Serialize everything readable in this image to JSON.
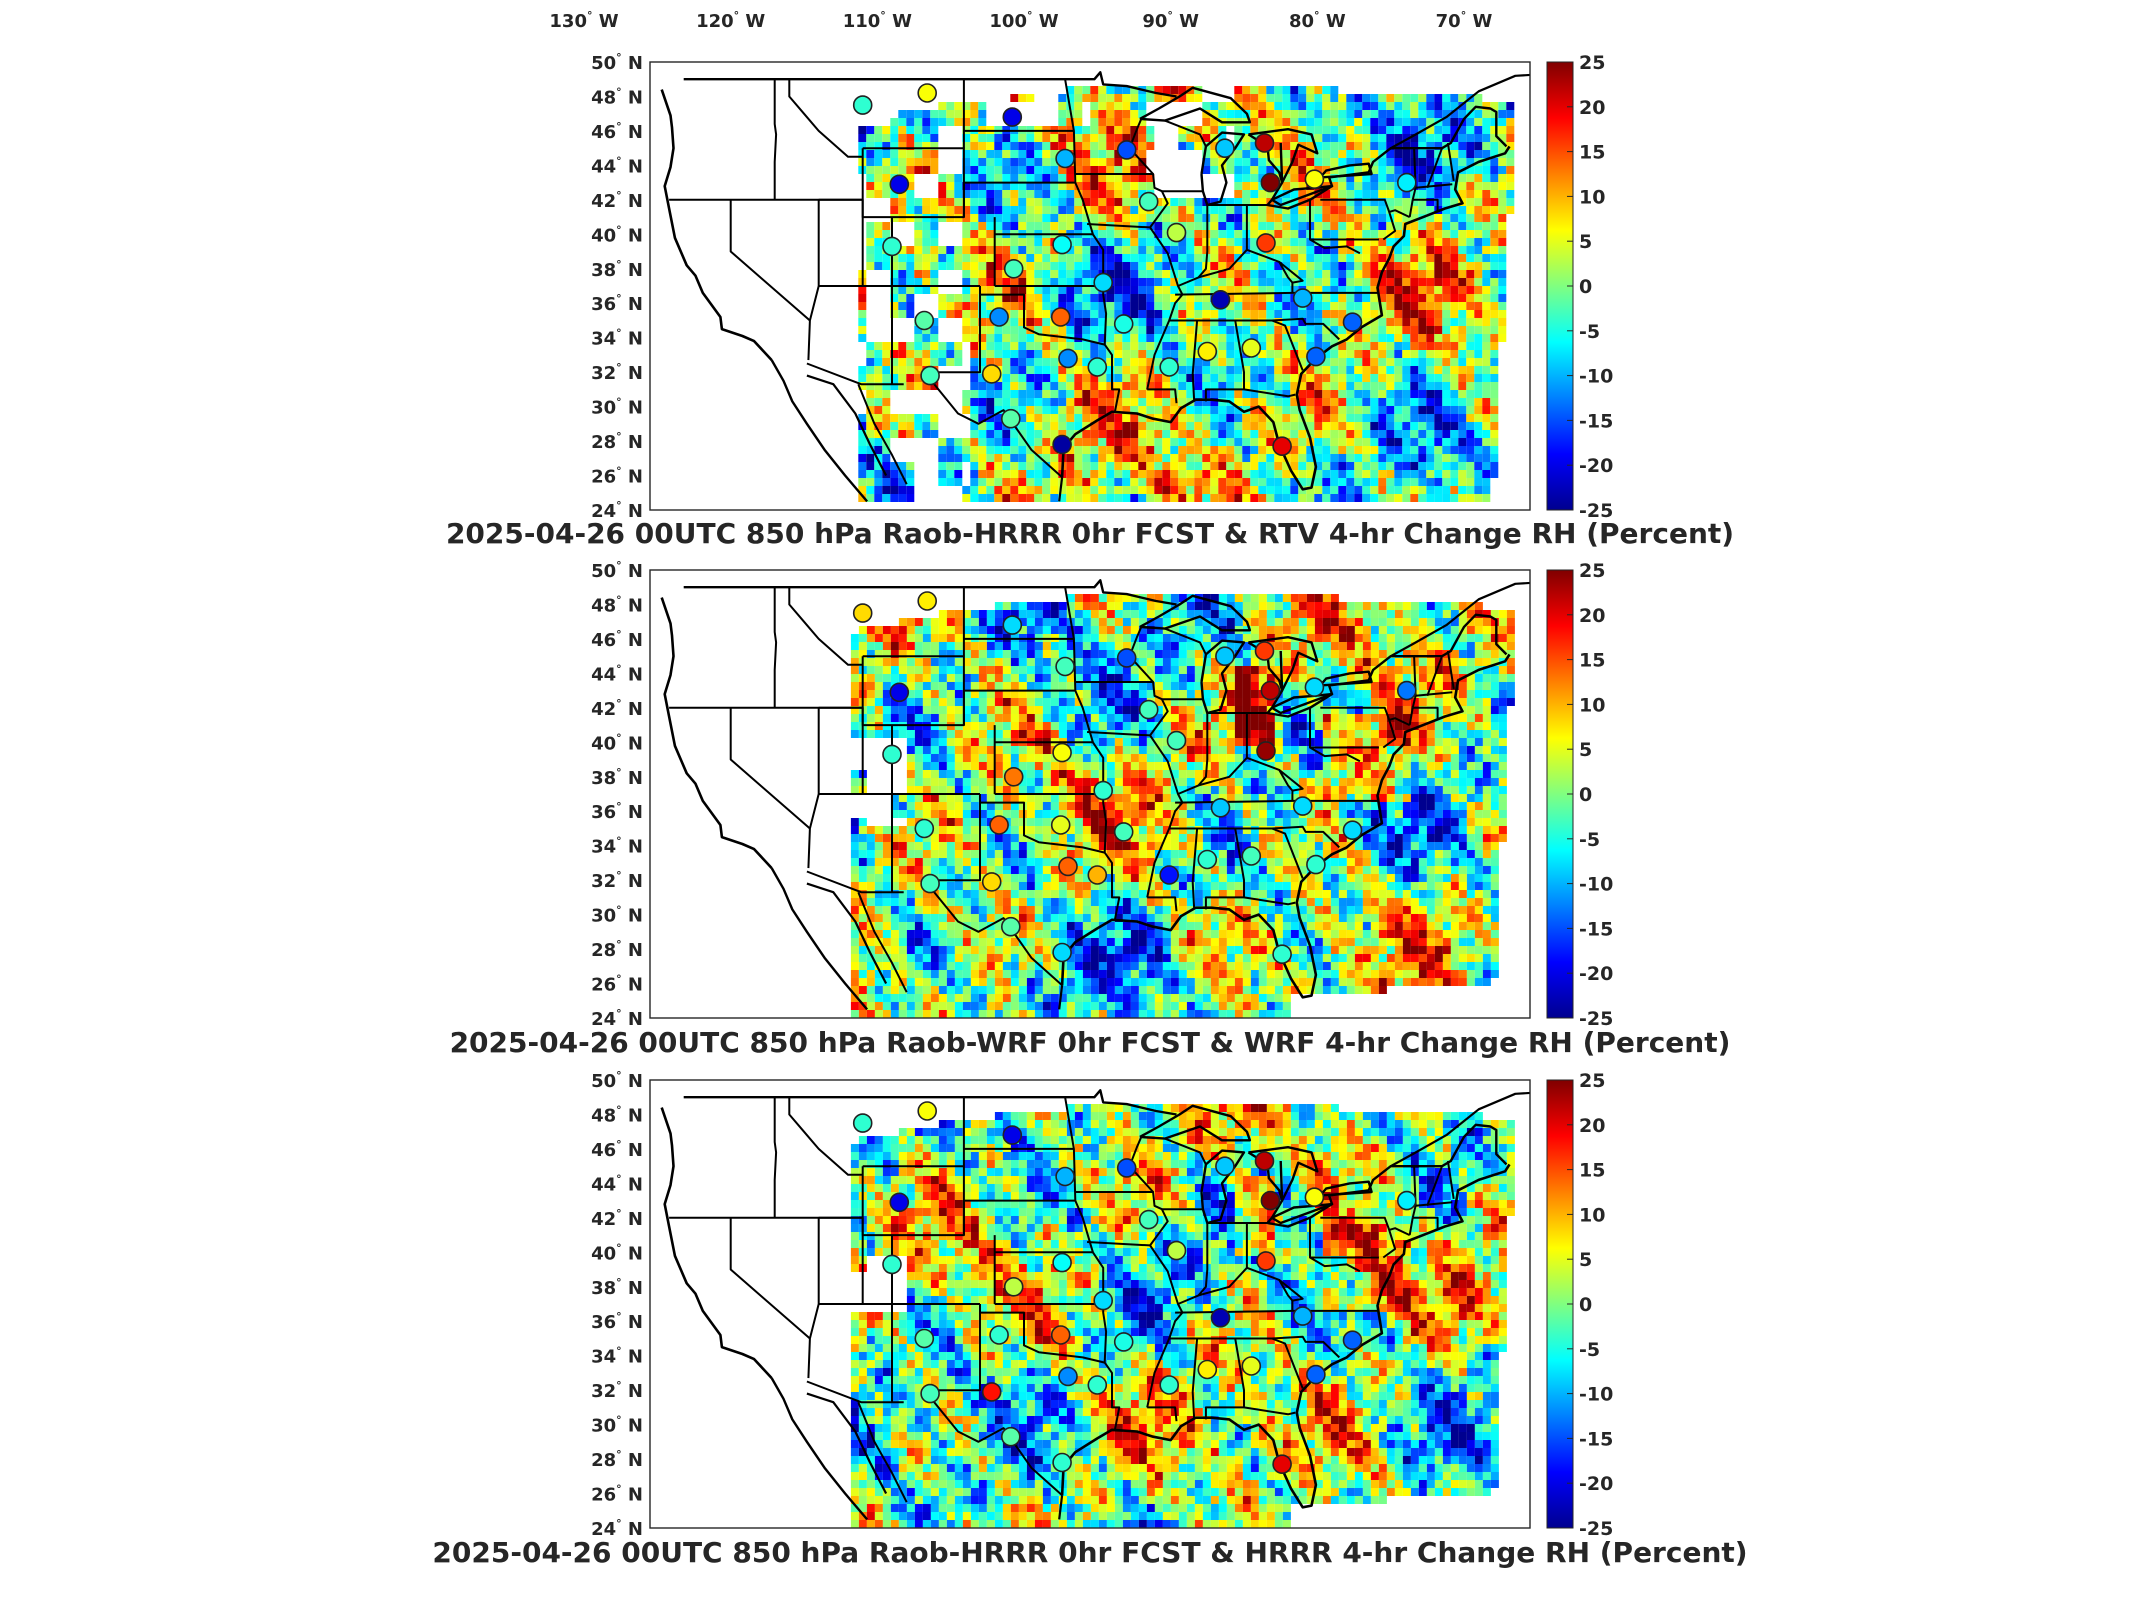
{
  "figure": {
    "top_lon_labels": [
      {
        "num": "130",
        "hemi": "W"
      },
      {
        "num": "120",
        "hemi": "W"
      },
      {
        "num": "110",
        "hemi": "W"
      },
      {
        "num": "100",
        "hemi": "W"
      },
      {
        "num": "90",
        "hemi": "W"
      },
      {
        "num": "80",
        "hemi": "W"
      },
      {
        "num": "70",
        "hemi": "W"
      }
    ],
    "lon_values": [
      -130,
      -120,
      -110,
      -100,
      -90,
      -80,
      -70
    ],
    "lat_labels": [
      {
        "num": "50",
        "hemi": "N"
      },
      {
        "num": "48",
        "hemi": "N"
      },
      {
        "num": "46",
        "hemi": "N"
      },
      {
        "num": "44",
        "hemi": "N"
      },
      {
        "num": "42",
        "hemi": "N"
      },
      {
        "num": "40",
        "hemi": "N"
      },
      {
        "num": "38",
        "hemi": "N"
      },
      {
        "num": "36",
        "hemi": "N"
      },
      {
        "num": "34",
        "hemi": "N"
      },
      {
        "num": "32",
        "hemi": "N"
      },
      {
        "num": "30",
        "hemi": "N"
      },
      {
        "num": "28",
        "hemi": "N"
      },
      {
        "num": "26",
        "hemi": "N"
      },
      {
        "num": "24",
        "hemi": "N"
      }
    ],
    "lat_values": [
      50,
      48,
      46,
      44,
      42,
      40,
      38,
      36,
      34,
      32,
      30,
      28,
      26,
      24
    ],
    "colorbar_ticks": [
      "25",
      "20",
      "15",
      "10",
      "5",
      "0",
      "-5",
      "-10",
      "-15",
      "-20",
      "-25"
    ],
    "colorbar_values": [
      25,
      20,
      15,
      10,
      5,
      0,
      -5,
      -10,
      -15,
      -20,
      -25
    ],
    "colormap": "jet",
    "colormap_stops": [
      "#00008f",
      "#0000ff",
      "#0080ff",
      "#00ffff",
      "#80ff80",
      "#ffff00",
      "#ff8000",
      "#ff0000",
      "#800000"
    ],
    "panels": [
      {
        "title": "2025-04-26 00UTC 850 hPa Raob-HRRR 0hr FCST & RTV 4-hr Change RH (Percent)",
        "field_seed": 11,
        "raobs": [
          {
            "lon": -111.0,
            "lat": 47.5,
            "v": -4
          },
          {
            "lon": -106.6,
            "lat": 48.2,
            "v": 6
          },
          {
            "lon": -100.8,
            "lat": 46.8,
            "v": -20
          },
          {
            "lon": -97.2,
            "lat": 44.4,
            "v": -10
          },
          {
            "lon": -93.0,
            "lat": 44.9,
            "v": -15
          },
          {
            "lon": -108.5,
            "lat": 42.9,
            "v": -20
          },
          {
            "lon": -109.0,
            "lat": 39.3,
            "v": -4
          },
          {
            "lon": -100.7,
            "lat": 38.0,
            "v": -3
          },
          {
            "lon": -97.4,
            "lat": 39.4,
            "v": -6
          },
          {
            "lon": -94.6,
            "lat": 37.2,
            "v": -8
          },
          {
            "lon": -91.5,
            "lat": 41.9,
            "v": -3
          },
          {
            "lon": -89.6,
            "lat": 40.1,
            "v": 3
          },
          {
            "lon": -86.3,
            "lat": 45.0,
            "v": -9
          },
          {
            "lon": -83.6,
            "lat": 45.3,
            "v": 22
          },
          {
            "lon": -83.2,
            "lat": 43.0,
            "v": 25
          },
          {
            "lon": -80.2,
            "lat": 43.2,
            "v": 6
          },
          {
            "lon": -83.5,
            "lat": 39.5,
            "v": 16
          },
          {
            "lon": -73.9,
            "lat": 43.0,
            "v": -7
          },
          {
            "lon": -106.8,
            "lat": 35.0,
            "v": -2
          },
          {
            "lon": -101.7,
            "lat": 35.2,
            "v": -12
          },
          {
            "lon": -97.5,
            "lat": 35.2,
            "v": 14
          },
          {
            "lon": -93.2,
            "lat": 34.8,
            "v": -5
          },
          {
            "lon": -86.6,
            "lat": 36.2,
            "v": -23
          },
          {
            "lon": -81.0,
            "lat": 36.3,
            "v": -10
          },
          {
            "lon": -84.5,
            "lat": 33.4,
            "v": 5
          },
          {
            "lon": -87.5,
            "lat": 33.2,
            "v": 7
          },
          {
            "lon": -90.1,
            "lat": 32.3,
            "v": -4
          },
          {
            "lon": -95.0,
            "lat": 32.3,
            "v": -4
          },
          {
            "lon": -97.0,
            "lat": 32.8,
            "v": -12
          },
          {
            "lon": -102.2,
            "lat": 31.9,
            "v": 8
          },
          {
            "lon": -106.4,
            "lat": 31.8,
            "v": -3
          },
          {
            "lon": -100.9,
            "lat": 29.3,
            "v": -2
          },
          {
            "lon": -97.4,
            "lat": 27.8,
            "v": -24
          },
          {
            "lon": -82.4,
            "lat": 27.7,
            "v": 20
          },
          {
            "lon": -80.1,
            "lat": 32.9,
            "v": -14
          },
          {
            "lon": -77.6,
            "lat": 34.9,
            "v": -14
          }
        ]
      },
      {
        "title": "2025-04-26 00UTC 850 hPa Raob-WRF 0hr FCST & WRF 4-hr Change RH (Percent)",
        "field_seed": 23,
        "raobs": [
          {
            "lon": -111.0,
            "lat": 47.5,
            "v": 8
          },
          {
            "lon": -106.6,
            "lat": 48.2,
            "v": 7
          },
          {
            "lon": -100.8,
            "lat": 46.8,
            "v": -8
          },
          {
            "lon": -97.2,
            "lat": 44.4,
            "v": -3
          },
          {
            "lon": -93.0,
            "lat": 44.9,
            "v": -15
          },
          {
            "lon": -108.5,
            "lat": 42.9,
            "v": -20
          },
          {
            "lon": -109.0,
            "lat": 39.3,
            "v": -4
          },
          {
            "lon": -100.7,
            "lat": 38.0,
            "v": 13
          },
          {
            "lon": -97.4,
            "lat": 39.4,
            "v": 6
          },
          {
            "lon": -94.6,
            "lat": 37.2,
            "v": -4
          },
          {
            "lon": -91.5,
            "lat": 41.9,
            "v": -3
          },
          {
            "lon": -89.6,
            "lat": 40.1,
            "v": -3
          },
          {
            "lon": -86.3,
            "lat": 45.0,
            "v": -9
          },
          {
            "lon": -83.6,
            "lat": 45.3,
            "v": 16
          },
          {
            "lon": -83.2,
            "lat": 43.0,
            "v": 22
          },
          {
            "lon": -80.2,
            "lat": 43.2,
            "v": -8
          },
          {
            "lon": -83.5,
            "lat": 39.5,
            "v": 24
          },
          {
            "lon": -73.9,
            "lat": 43.0,
            "v": -13
          },
          {
            "lon": -106.8,
            "lat": 35.0,
            "v": -4
          },
          {
            "lon": -101.7,
            "lat": 35.2,
            "v": 14
          },
          {
            "lon": -97.5,
            "lat": 35.2,
            "v": 5
          },
          {
            "lon": -93.2,
            "lat": 34.8,
            "v": -3
          },
          {
            "lon": -86.6,
            "lat": 36.2,
            "v": -9
          },
          {
            "lon": -81.0,
            "lat": 36.3,
            "v": -8
          },
          {
            "lon": -84.5,
            "lat": 33.4,
            "v": -3
          },
          {
            "lon": -87.5,
            "lat": 33.2,
            "v": -4
          },
          {
            "lon": -90.1,
            "lat": 32.3,
            "v": -18
          },
          {
            "lon": -95.0,
            "lat": 32.3,
            "v": 10
          },
          {
            "lon": -97.0,
            "lat": 32.8,
            "v": 14
          },
          {
            "lon": -102.2,
            "lat": 31.9,
            "v": 8
          },
          {
            "lon": -106.4,
            "lat": 31.8,
            "v": -3
          },
          {
            "lon": -100.9,
            "lat": 29.3,
            "v": -2
          },
          {
            "lon": -97.4,
            "lat": 27.8,
            "v": -8
          },
          {
            "lon": -82.4,
            "lat": 27.7,
            "v": -4
          },
          {
            "lon": -80.1,
            "lat": 32.9,
            "v": -4
          },
          {
            "lon": -77.6,
            "lat": 34.9,
            "v": -8
          }
        ]
      },
      {
        "title": "2025-04-26 00UTC 850 hPa Raob-HRRR 0hr FCST & HRRR 4-hr Change RH (Percent)",
        "field_seed": 37,
        "raobs": [
          {
            "lon": -111.0,
            "lat": 47.5,
            "v": -4
          },
          {
            "lon": -106.6,
            "lat": 48.2,
            "v": 6
          },
          {
            "lon": -100.8,
            "lat": 46.8,
            "v": -20
          },
          {
            "lon": -97.2,
            "lat": 44.4,
            "v": -10
          },
          {
            "lon": -93.0,
            "lat": 44.9,
            "v": -15
          },
          {
            "lon": -108.5,
            "lat": 42.9,
            "v": -20
          },
          {
            "lon": -109.0,
            "lat": 39.3,
            "v": -4
          },
          {
            "lon": -100.7,
            "lat": 38.0,
            "v": 3
          },
          {
            "lon": -97.4,
            "lat": 39.4,
            "v": -6
          },
          {
            "lon": -94.6,
            "lat": 37.2,
            "v": -8
          },
          {
            "lon": -91.5,
            "lat": 41.9,
            "v": -3
          },
          {
            "lon": -89.6,
            "lat": 40.1,
            "v": 3
          },
          {
            "lon": -86.3,
            "lat": 45.0,
            "v": -9
          },
          {
            "lon": -83.6,
            "lat": 45.3,
            "v": 22
          },
          {
            "lon": -83.2,
            "lat": 43.0,
            "v": 25
          },
          {
            "lon": -80.2,
            "lat": 43.2,
            "v": 6
          },
          {
            "lon": -83.5,
            "lat": 39.5,
            "v": 16
          },
          {
            "lon": -73.9,
            "lat": 43.0,
            "v": -7
          },
          {
            "lon": -106.8,
            "lat": 35.0,
            "v": -2
          },
          {
            "lon": -101.7,
            "lat": 35.2,
            "v": -4
          },
          {
            "lon": -97.5,
            "lat": 35.2,
            "v": 14
          },
          {
            "lon": -93.2,
            "lat": 34.8,
            "v": -5
          },
          {
            "lon": -86.6,
            "lat": 36.2,
            "v": -23
          },
          {
            "lon": -81.0,
            "lat": 36.3,
            "v": -10
          },
          {
            "lon": -84.5,
            "lat": 33.4,
            "v": 5
          },
          {
            "lon": -87.5,
            "lat": 33.2,
            "v": 7
          },
          {
            "lon": -90.1,
            "lat": 32.3,
            "v": -4
          },
          {
            "lon": -95.0,
            "lat": 32.3,
            "v": -4
          },
          {
            "lon": -97.0,
            "lat": 32.8,
            "v": -12
          },
          {
            "lon": -102.2,
            "lat": 31.9,
            "v": 18
          },
          {
            "lon": -106.4,
            "lat": 31.8,
            "v": -3
          },
          {
            "lon": -100.9,
            "lat": 29.3,
            "v": -2
          },
          {
            "lon": -97.4,
            "lat": 27.8,
            "v": -4
          },
          {
            "lon": -82.4,
            "lat": 27.7,
            "v": 20
          },
          {
            "lon": -80.1,
            "lat": 32.9,
            "v": -14
          },
          {
            "lon": -77.6,
            "lat": 34.9,
            "v": -14
          }
        ]
      }
    ]
  }
}
